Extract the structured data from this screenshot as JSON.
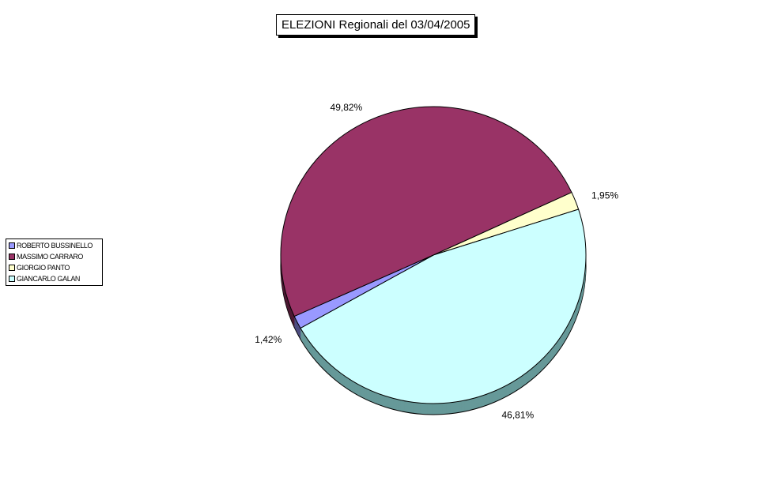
{
  "chart_data": {
    "type": "pie",
    "title": "ELEZIONI Regionali del 03/04/2005",
    "legend_position": "left",
    "slices": [
      {
        "name": "ROBERTO BUSSINELLO",
        "value": 1.42,
        "label": "1,42%",
        "color": "#9999FF",
        "shade": "#4d4d80"
      },
      {
        "name": "MASSIMO CARRARO",
        "value": 49.82,
        "label": "49,82%",
        "color": "#993366",
        "shade": "#4d1a33"
      },
      {
        "name": "GIORGIO PANTO",
        "value": 1.95,
        "label": "1,95%",
        "color": "#FFFFCC",
        "shade": "#808066"
      },
      {
        "name": "GIANCARLO GALAN",
        "value": 46.81,
        "label": "46,81%",
        "color": "#CCFFFF",
        "shade": "#669999"
      }
    ]
  }
}
